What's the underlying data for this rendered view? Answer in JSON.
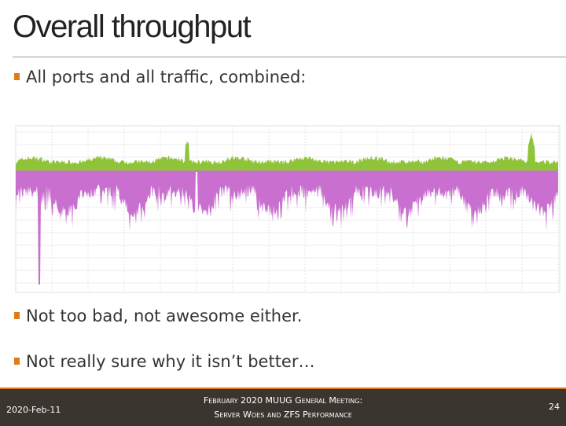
{
  "header": {
    "title": "Overall throughput"
  },
  "bullets": [
    "All ports and all traffic, combined:",
    "Not too bad, not awesome either.",
    "Not really sure why it isn’t better…"
  ],
  "footer": {
    "date": "2020-Feb-11",
    "event": {
      "line1": "February 2020 MUUG General Meeting:",
      "line2": "Server Woes and ZFS Performance"
    },
    "page": "24"
  }
}
